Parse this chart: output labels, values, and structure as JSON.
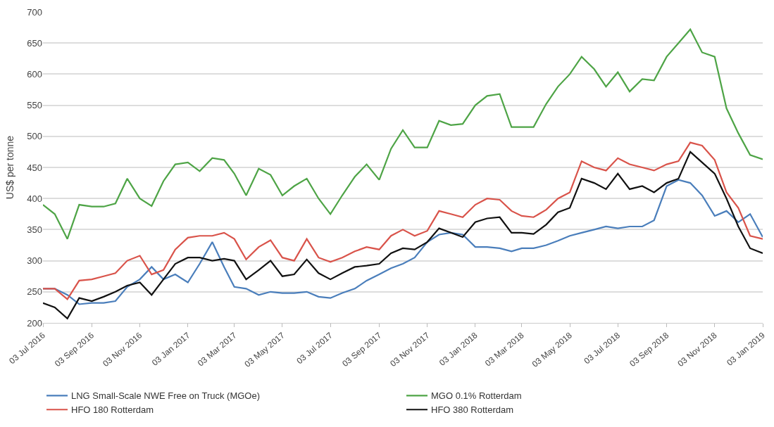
{
  "chart_data": {
    "type": "line",
    "ylabel": "US$ per tonne",
    "x": [
      "2016-07-03",
      "2016-07-18",
      "2016-08-03",
      "2016-08-18",
      "2016-09-03",
      "2016-09-18",
      "2016-10-03",
      "2016-10-18",
      "2016-11-03",
      "2016-11-18",
      "2016-12-03",
      "2016-12-18",
      "2017-01-03",
      "2017-01-18",
      "2017-02-03",
      "2017-02-18",
      "2017-03-03",
      "2017-03-18",
      "2017-04-03",
      "2017-04-18",
      "2017-05-03",
      "2017-05-18",
      "2017-06-03",
      "2017-06-18",
      "2017-07-03",
      "2017-07-18",
      "2017-08-03",
      "2017-08-18",
      "2017-09-03",
      "2017-09-18",
      "2017-10-03",
      "2017-10-18",
      "2017-11-03",
      "2017-11-18",
      "2017-12-03",
      "2017-12-18",
      "2018-01-03",
      "2018-01-18",
      "2018-02-03",
      "2018-02-18",
      "2018-03-03",
      "2018-03-18",
      "2018-04-03",
      "2018-04-18",
      "2018-05-03",
      "2018-05-18",
      "2018-06-03",
      "2018-06-18",
      "2018-07-03",
      "2018-07-18",
      "2018-08-03",
      "2018-08-18",
      "2018-09-03",
      "2018-09-18",
      "2018-10-03",
      "2018-10-18",
      "2018-11-03",
      "2018-11-18",
      "2018-12-03",
      "2018-12-18",
      "2019-01-03"
    ],
    "series": [
      {
        "name": "LNG Small-Scale NWE Free on Truck (MGOe)",
        "color": "#4a7ebb",
        "values": [
          255,
          255,
          245,
          230,
          232,
          232,
          235,
          258,
          270,
          290,
          270,
          278,
          265,
          295,
          330,
          290,
          258,
          255,
          245,
          250,
          248,
          248,
          250,
          242,
          240,
          248,
          255,
          268,
          278,
          288,
          295,
          305,
          330,
          342,
          345,
          342,
          322,
          322,
          320,
          315,
          320,
          320,
          325,
          332,
          340,
          345,
          350,
          355,
          352,
          355,
          355,
          365,
          420,
          430,
          425,
          405,
          372,
          380,
          362,
          375,
          338
        ]
      },
      {
        "name": "MGO 0.1% Rotterdam",
        "color": "#4ea446",
        "values": [
          390,
          375,
          335,
          390,
          387,
          387,
          392,
          432,
          400,
          388,
          428,
          455,
          458,
          444,
          465,
          462,
          440,
          405,
          448,
          438,
          405,
          420,
          432,
          400,
          375,
          405,
          435,
          455,
          430,
          480,
          510,
          482,
          482,
          525,
          518,
          520,
          550,
          565,
          568,
          515,
          515,
          515,
          552,
          580,
          600,
          628,
          608,
          580,
          603,
          572,
          592,
          590,
          628,
          650,
          672,
          635,
          628,
          545,
          505,
          470,
          463
        ]
      },
      {
        "name": "HFO 180 Rotterdam",
        "color": "#d9534a",
        "values": [
          255,
          255,
          238,
          268,
          270,
          275,
          280,
          300,
          308,
          278,
          285,
          318,
          337,
          340,
          340,
          345,
          335,
          302,
          322,
          333,
          305,
          300,
          335,
          305,
          298,
          305,
          315,
          322,
          318,
          340,
          350,
          340,
          348,
          380,
          375,
          370,
          390,
          400,
          398,
          380,
          372,
          370,
          382,
          400,
          410,
          460,
          450,
          445,
          465,
          455,
          450,
          445,
          455,
          460,
          490,
          485,
          462,
          410,
          385,
          340,
          335
        ]
      },
      {
        "name": "HFO 380 Rotterdam",
        "color": "#111111",
        "values": [
          232,
          225,
          207,
          240,
          235,
          242,
          250,
          260,
          265,
          245,
          270,
          295,
          305,
          305,
          300,
          303,
          300,
          270,
          285,
          300,
          275,
          278,
          302,
          280,
          270,
          280,
          290,
          292,
          295,
          312,
          320,
          318,
          330,
          352,
          345,
          338,
          362,
          368,
          370,
          345,
          345,
          343,
          358,
          378,
          385,
          432,
          425,
          415,
          440,
          415,
          420,
          410,
          425,
          432,
          475,
          458,
          440,
          400,
          355,
          320,
          312
        ]
      }
    ],
    "xlim": [
      "2016-07-03",
      "2019-01-03"
    ],
    "xticks": [
      {
        "value": "2016-07-03",
        "label": "03 Jul 2016"
      },
      {
        "value": "2016-09-03",
        "label": "03 Sep 2016"
      },
      {
        "value": "2016-11-03",
        "label": "03 Nov 2016"
      },
      {
        "value": "2017-01-03",
        "label": "03 Jan 2017"
      },
      {
        "value": "2017-03-03",
        "label": "03 Mar 2017"
      },
      {
        "value": "2017-05-03",
        "label": "03 May 2017"
      },
      {
        "value": "2017-07-03",
        "label": "03 Jul 2017"
      },
      {
        "value": "2017-09-03",
        "label": "03 Sep 2017"
      },
      {
        "value": "2017-11-03",
        "label": "03 Nov 2017"
      },
      {
        "value": "2018-01-03",
        "label": "03 Jan 2018"
      },
      {
        "value": "2018-03-03",
        "label": "03 Mar 2018"
      },
      {
        "value": "2018-05-03",
        "label": "03 May 2018"
      },
      {
        "value": "2018-07-03",
        "label": "03 Jul 2018"
      },
      {
        "value": "2018-09-03",
        "label": "03 Sep 2018"
      },
      {
        "value": "2018-11-03",
        "label": "03 Nov 2018"
      },
      {
        "value": "2019-01-03",
        "label": "03 Jan 2019"
      }
    ],
    "ylim": [
      200,
      700
    ],
    "yticks": [
      200,
      250,
      300,
      350,
      400,
      450,
      500,
      550,
      600,
      650,
      700
    ],
    "grid": "y",
    "legend": "bottom",
    "marker": "none",
    "line_style": "solid"
  }
}
